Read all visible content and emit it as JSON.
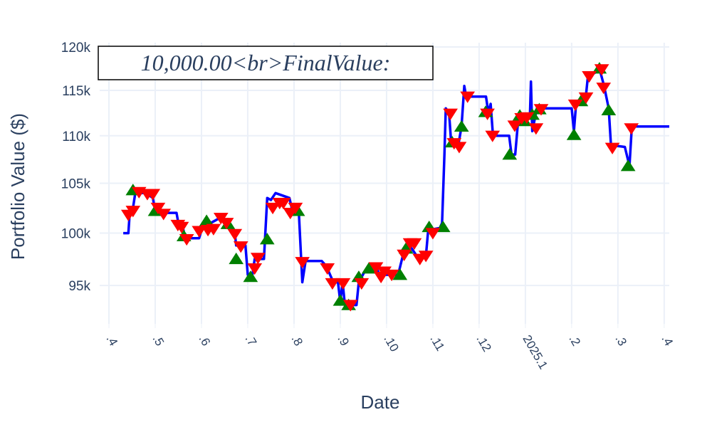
{
  "chart_data": {
    "type": "line",
    "annotation": "10,000.00<br>FinalValue:",
    "x_label": "Date",
    "y_label": "Portfolio Value ($)",
    "log_y": true,
    "grid": true,
    "xlim": [
      3.8,
      16.11
    ],
    "ylim": [
      91500,
      120500
    ],
    "xticks": [
      {
        "value": 4,
        "label": ".4"
      },
      {
        "value": 5,
        "label": ".5"
      },
      {
        "value": 6,
        "label": ".6"
      },
      {
        "value": 7,
        "label": ".7"
      },
      {
        "value": 8,
        "label": ".8"
      },
      {
        "value": 9,
        "label": ".9"
      },
      {
        "value": 10,
        "label": ".10"
      },
      {
        "value": 11,
        "label": ".11"
      },
      {
        "value": 12,
        "label": ".12"
      },
      {
        "value": 13,
        "label": "2025.1"
      },
      {
        "value": 14,
        "label": ".2"
      },
      {
        "value": 15,
        "label": ".3"
      },
      {
        "value": 16,
        "label": ".4"
      }
    ],
    "yticks": [
      {
        "value": 95000,
        "label": "95k"
      },
      {
        "value": 100000,
        "label": "100k"
      },
      {
        "value": 105000,
        "label": "105k"
      },
      {
        "value": 110000,
        "label": "110k"
      },
      {
        "value": 115000,
        "label": "115k"
      },
      {
        "value": 120000,
        "label": "120k"
      }
    ],
    "series": [
      {
        "mode": "line",
        "color": "#0000ff",
        "x": [
          4.31,
          4.42,
          4.45,
          4.52,
          4.57,
          4.8,
          4.95,
          5.0,
          5.18,
          5.46,
          5.5,
          5.6,
          5.65,
          5.95,
          6.0,
          6.2,
          6.4,
          6.6,
          6.72,
          6.75,
          6.95,
          7.0,
          7.1,
          7.15,
          7.35,
          7.42,
          7.5,
          7.6,
          7.9,
          7.95,
          8.1,
          8.18,
          8.25,
          8.6,
          8.7,
          8.85,
          8.95,
          9.0,
          9.05,
          9.1,
          9.35,
          9.4,
          9.55,
          9.8,
          9.85,
          10.25,
          10.35,
          10.5,
          10.65,
          10.85,
          10.9,
          11.15,
          11.2,
          11.25,
          11.28,
          11.35,
          11.4,
          11.55,
          11.62,
          11.68,
          11.72,
          12.15,
          12.2,
          12.25,
          12.3,
          12.65,
          12.7,
          12.78,
          12.85,
          13.0,
          13.1,
          13.12,
          13.15,
          13.25,
          14.0,
          14.05,
          14.1,
          14.3,
          14.35,
          14.5,
          14.6,
          14.7,
          14.8,
          14.85,
          15.15,
          15.25,
          15.3,
          16.11
        ],
        "values": [
          100000,
          100000,
          102000,
          102500,
          104000,
          104000,
          103500,
          102200,
          102000,
          102000,
          101000,
          100500,
          99500,
          99500,
          100300,
          101000,
          101500,
          101000,
          100000,
          98800,
          98800,
          96000,
          96000,
          97500,
          97500,
          103500,
          103300,
          104000,
          103500,
          102500,
          102500,
          95300,
          97300,
          97300,
          96800,
          95300,
          95300,
          93500,
          95300,
          93200,
          93200,
          95300,
          96500,
          96500,
          96000,
          96000,
          97800,
          98800,
          97800,
          97800,
          100300,
          100500,
          101000,
          108000,
          113000,
          112500,
          109000,
          109000,
          111000,
          115500,
          114300,
          114300,
          112500,
          113500,
          110000,
          110000,
          108000,
          108000,
          112000,
          112000,
          112500,
          116000,
          110500,
          113000,
          113000,
          110500,
          113800,
          114000,
          116500,
          117000,
          117500,
          115500,
          113000,
          109000,
          108800,
          106800,
          111000,
          111000
        ]
      },
      {
        "mode": "marker",
        "marker": "triangle-up",
        "color": "#008000",
        "x": [
          4.52,
          5.0,
          5.62,
          6.11,
          6.57,
          6.75,
          7.06,
          7.42,
          8.08,
          9.0,
          9.18,
          9.4,
          9.62,
          10.29,
          10.42,
          10.92,
          11.22,
          11.42,
          11.62,
          12.14,
          12.66,
          12.88,
          12.98,
          13.15,
          13.3,
          14.05,
          14.2,
          14.6,
          14.8,
          15.22
        ],
        "values": [
          104300,
          102200,
          99700,
          101200,
          100900,
          97500,
          95800,
          99400,
          102200,
          93600,
          93200,
          95800,
          96600,
          96000,
          98500,
          100600,
          100600,
          109300,
          111000,
          112600,
          108000,
          112200,
          111600,
          112300,
          112900,
          110100,
          113800,
          117500,
          112800,
          106800
        ]
      },
      {
        "mode": "marker",
        "marker": "triangle-down",
        "color": "#ff0000",
        "x": [
          4.42,
          4.52,
          4.65,
          4.83,
          4.95,
          5.06,
          5.18,
          5.49,
          5.57,
          5.68,
          5.95,
          6.14,
          6.26,
          6.42,
          6.54,
          6.72,
          6.85,
          7.15,
          7.22,
          7.54,
          7.69,
          7.77,
          7.92,
          8.03,
          8.18,
          8.72,
          8.83,
          9.06,
          9.22,
          9.46,
          9.77,
          9.88,
          9.95,
          10.11,
          10.38,
          10.51,
          10.6,
          10.72,
          10.85,
          11.0,
          11.38,
          11.46,
          11.57,
          11.75,
          12.18,
          12.29,
          12.77,
          12.92,
          13.03,
          13.23,
          13.34,
          14.08,
          14.31,
          14.38,
          14.65,
          14.69,
          14.88,
          15.29
        ],
        "values": [
          101800,
          102200,
          104100,
          103900,
          103900,
          102500,
          101900,
          100800,
          100600,
          99400,
          100200,
          100300,
          100400,
          101500,
          101000,
          99900,
          98700,
          96600,
          97600,
          102500,
          103000,
          103000,
          102000,
          102500,
          97200,
          96600,
          95200,
          95200,
          93200,
          95200,
          96700,
          95800,
          96300,
          96000,
          97900,
          99000,
          99000,
          97500,
          97800,
          100000,
          112400,
          109200,
          108800,
          114300,
          112400,
          110000,
          111100,
          111900,
          112000,
          110800,
          112900,
          113400,
          114200,
          116600,
          117400,
          115300,
          108700,
          110800
        ]
      }
    ]
  }
}
